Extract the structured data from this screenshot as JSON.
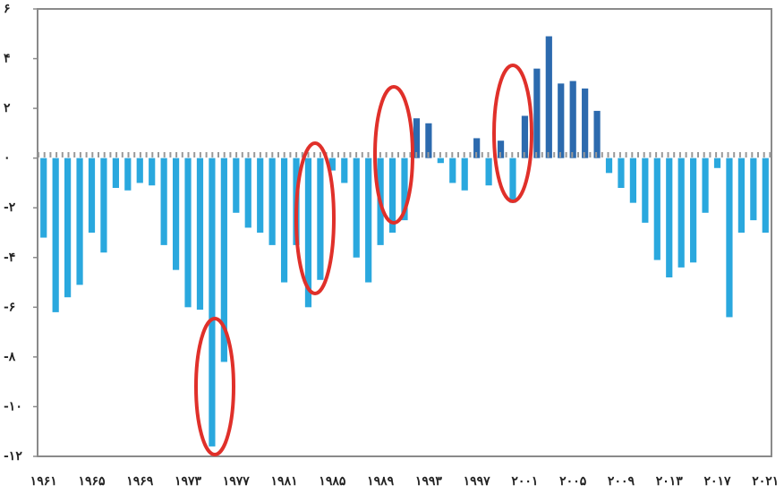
{
  "chart_data": {
    "type": "bar",
    "categories": [
      "۱۹۶۱",
      null,
      null,
      null,
      "۱۹۶۵",
      null,
      null,
      null,
      "۱۹۶۹",
      null,
      null,
      null,
      "۱۹۷۳",
      null,
      null,
      null,
      "۱۹۷۷",
      null,
      null,
      null,
      "۱۹۸۱",
      null,
      null,
      null,
      "۱۹۸۵",
      null,
      null,
      null,
      "۱۹۸۹",
      null,
      null,
      null,
      "۱۹۹۳",
      null,
      null,
      null,
      "۱۹۹۷",
      null,
      null,
      null,
      "۲۰۰۱",
      null,
      null,
      null,
      "۲۰۰۵",
      null,
      null,
      null,
      "۲۰۰۹",
      null,
      null,
      null,
      "۲۰۱۳",
      null,
      null,
      null,
      "۲۰۱۷",
      null,
      null,
      null,
      "۲۰۲۱"
    ],
    "values": [
      -3.2,
      -6.2,
      -5.6,
      -5.1,
      -3.0,
      -3.8,
      -1.2,
      -1.3,
      -1.0,
      -1.1,
      -3.5,
      -4.5,
      -6.0,
      -6.1,
      -11.6,
      -8.2,
      -2.2,
      -2.8,
      -3.0,
      -3.5,
      -5.0,
      -3.5,
      -6.0,
      -4.9,
      -0.5,
      -1.0,
      -4.0,
      -5.0,
      -3.5,
      -3.0,
      -2.5,
      1.6,
      1.4,
      -0.2,
      -1.0,
      -1.3,
      0.8,
      -1.1,
      0.7,
      -1.8,
      1.7,
      3.6,
      4.9,
      3.0,
      3.1,
      2.8,
      1.9,
      -0.6,
      -1.2,
      -1.8,
      -2.6,
      -4.1,
      -4.8,
      -4.4,
      -4.2,
      -2.2,
      -0.4,
      -6.4,
      -3.0,
      -2.5,
      -3.0
    ],
    "color": "#2aa8de",
    "positive_color": "#2c6aae",
    "ylim": [
      -12,
      6
    ],
    "yticks": [
      {
        "value": -12,
        "label": "-۱۲"
      },
      {
        "value": -10,
        "label": "-۱۰"
      },
      {
        "value": -8,
        "label": "-۸"
      },
      {
        "value": -6,
        "label": "-۶"
      },
      {
        "value": -4,
        "label": "-۴"
      },
      {
        "value": -2,
        "label": "-۲"
      },
      {
        "value": 0,
        "label": "۰"
      },
      {
        "value": 2,
        "label": "۲"
      },
      {
        "value": 4,
        "label": "۴"
      },
      {
        "value": 6,
        "label": "۶"
      }
    ],
    "grid": false
  }
}
